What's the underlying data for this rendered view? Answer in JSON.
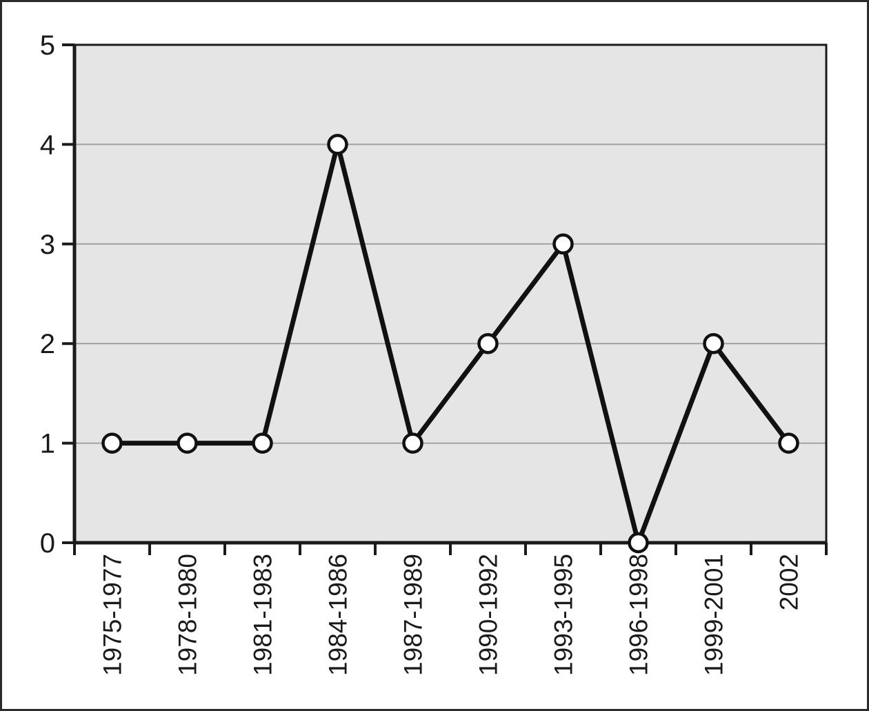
{
  "chart_data": {
    "type": "line",
    "title": "",
    "xlabel": "",
    "ylabel": "",
    "categories": [
      "1975-1977",
      "1978-1980",
      "1981-1983",
      "1984-1986",
      "1987-1989",
      "1990-1992",
      "1993-1995",
      "1996-1998",
      "1999-2001",
      "2002"
    ],
    "values": [
      1,
      1,
      1,
      4,
      1,
      2,
      3,
      0,
      2,
      1
    ],
    "ylim": [
      0,
      5
    ],
    "yticks": [
      0,
      1,
      2,
      3,
      4,
      5
    ],
    "gridline_values": [
      1,
      2,
      3,
      4
    ],
    "grid": "horizontal",
    "legend": "none",
    "marker": "open-circle",
    "x_label_rotation_deg": -90,
    "colors": {
      "page_bg": "#ffffff",
      "frame": "#2b2b2b",
      "plot_bg": "#e5e5e5",
      "plot_border": "#1a1a1a",
      "gridline": "#a0a0a0",
      "axis": "#1a1a1a",
      "tick": "#1a1a1a",
      "line": "#111111",
      "marker_fill": "#ffffff",
      "marker_stroke": "#111111",
      "text": "#1a1a1a"
    }
  }
}
